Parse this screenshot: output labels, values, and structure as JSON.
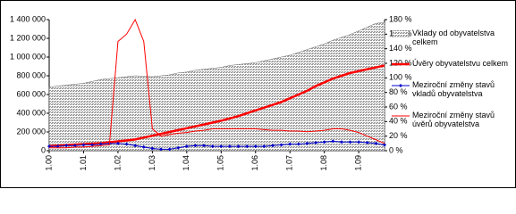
{
  "chart_data": {
    "type": "combo",
    "categories": [
      "1.00",
      null,
      null,
      null,
      "1.01",
      null,
      null,
      null,
      "1.02",
      null,
      null,
      null,
      "1.03",
      null,
      null,
      null,
      "1.04",
      null,
      null,
      null,
      "1.05",
      null,
      null,
      null,
      "1.06",
      null,
      null,
      null,
      "1.07",
      null,
      null,
      null,
      "1.08",
      null,
      null,
      null,
      "1.09",
      null,
      null,
      null
    ],
    "series": [
      {
        "name": "Vklady od obyvatelstva celkem",
        "type": "area",
        "color": "#9a9a9a",
        "values": [
          680000,
          690000,
          700000,
          710000,
          720000,
          740000,
          760000,
          770000,
          780000,
          790000,
          800000,
          795000,
          790000,
          800000,
          810000,
          830000,
          840000,
          860000,
          870000,
          880000,
          890000,
          910000,
          920000,
          930000,
          940000,
          960000,
          980000,
          1000000,
          1020000,
          1050000,
          1080000,
          1110000,
          1140000,
          1180000,
          1210000,
          1240000,
          1280000,
          1320000,
          1360000,
          1370000
        ]
      },
      {
        "name": "Úvěry obyvatelstvu celkem",
        "type": "line",
        "color": "#ff0000",
        "width": 2.5,
        "values": [
          50000,
          55000,
          60000,
          65000,
          70000,
          75000,
          80000,
          90000,
          100000,
          110000,
          120000,
          140000,
          160000,
          180000,
          200000,
          220000,
          240000,
          260000,
          280000,
          300000,
          320000,
          345000,
          370000,
          400000,
          430000,
          460000,
          490000,
          520000,
          560000,
          600000,
          640000,
          690000,
          730000,
          770000,
          800000,
          830000,
          850000,
          870000,
          890000,
          910000
        ]
      },
      {
        "name": "Meziroční změny stavů vkladů obyvatelstva",
        "type": "line",
        "color": "#0000cc",
        "width": 1,
        "marker": "diamond",
        "axis": "y2",
        "values": [
          6,
          6,
          7,
          7,
          8,
          8,
          9,
          10,
          10,
          9,
          7,
          5,
          3,
          2,
          2,
          4,
          6,
          7,
          7,
          6,
          6,
          6,
          6,
          6,
          6,
          6,
          7,
          8,
          9,
          9,
          10,
          11,
          12,
          13,
          12,
          12,
          12,
          11,
          10,
          8
        ]
      },
      {
        "name": "Meziroční změny stavů úvěrů obyvatelstva",
        "type": "line",
        "color": "#ff0000",
        "width": 1,
        "axis": "y2",
        "values": [
          4,
          4,
          4,
          5,
          5,
          6,
          7,
          8,
          150,
          160,
          180,
          150,
          30,
          20,
          22,
          24,
          25,
          27,
          28,
          30,
          30,
          30,
          30,
          30,
          30,
          29,
          28,
          28,
          27,
          27,
          26,
          27,
          28,
          30,
          30,
          28,
          25,
          20,
          15,
          10
        ]
      }
    ],
    "ylim": [
      0,
      1400000
    ],
    "yticks": [
      0,
      {
        "value": 200000,
        "label": "200 000"
      },
      {
        "value": 400000,
        "label": "400 000"
      },
      {
        "value": 600000,
        "label": "600 000"
      },
      {
        "value": 800000,
        "label": "800 000"
      },
      {
        "value": 1000000,
        "label": "1 000 000"
      },
      {
        "value": 1200000,
        "label": "1 200 000"
      },
      {
        "value": 1400000,
        "label": "1 400 000"
      }
    ],
    "y2lim": [
      0,
      180
    ],
    "y2ticks": [
      {
        "value": 0,
        "label": "0 %"
      },
      {
        "value": 20,
        "label": "20 %"
      },
      {
        "value": 40,
        "label": "40 %"
      },
      {
        "value": 60,
        "label": "60 %"
      },
      {
        "value": 80,
        "label": "80 %"
      },
      {
        "value": 100,
        "label": "100 %"
      },
      {
        "value": 120,
        "label": "120 %"
      },
      {
        "value": 140,
        "label": "140 %"
      },
      {
        "value": 160,
        "label": "160 %"
      },
      {
        "value": 180,
        "label": "180 %"
      }
    ],
    "legend": "right"
  }
}
